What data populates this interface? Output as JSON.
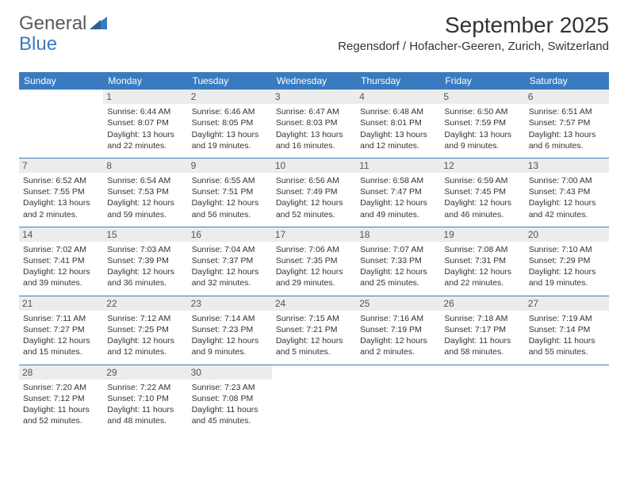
{
  "logo": {
    "general": "General",
    "blue": "Blue"
  },
  "title": "September 2025",
  "location": "Regensdorf / Hofacher-Geeren, Zurich, Switzerland",
  "colors": {
    "header_bg": "#3a7bbf",
    "header_text": "#ffffff",
    "daynum_bg": "#ececec",
    "daynum_text": "#555555",
    "cell_text": "#333333",
    "row_border": "#3a7bbf",
    "page_bg": "#ffffff"
  },
  "typography": {
    "title_fontsize": 28,
    "location_fontsize": 15,
    "header_fontsize": 12,
    "daynum_fontsize": 12,
    "cell_fontsize": 10.5
  },
  "day_headers": [
    "Sunday",
    "Monday",
    "Tuesday",
    "Wednesday",
    "Thursday",
    "Friday",
    "Saturday"
  ],
  "weeks": [
    [
      {
        "empty": true
      },
      {
        "num": "1",
        "sunrise": "Sunrise: 6:44 AM",
        "sunset": "Sunset: 8:07 PM",
        "day1": "Daylight: 13 hours",
        "day2": "and 22 minutes."
      },
      {
        "num": "2",
        "sunrise": "Sunrise: 6:46 AM",
        "sunset": "Sunset: 8:05 PM",
        "day1": "Daylight: 13 hours",
        "day2": "and 19 minutes."
      },
      {
        "num": "3",
        "sunrise": "Sunrise: 6:47 AM",
        "sunset": "Sunset: 8:03 PM",
        "day1": "Daylight: 13 hours",
        "day2": "and 16 minutes."
      },
      {
        "num": "4",
        "sunrise": "Sunrise: 6:48 AM",
        "sunset": "Sunset: 8:01 PM",
        "day1": "Daylight: 13 hours",
        "day2": "and 12 minutes."
      },
      {
        "num": "5",
        "sunrise": "Sunrise: 6:50 AM",
        "sunset": "Sunset: 7:59 PM",
        "day1": "Daylight: 13 hours",
        "day2": "and 9 minutes."
      },
      {
        "num": "6",
        "sunrise": "Sunrise: 6:51 AM",
        "sunset": "Sunset: 7:57 PM",
        "day1": "Daylight: 13 hours",
        "day2": "and 6 minutes."
      }
    ],
    [
      {
        "num": "7",
        "sunrise": "Sunrise: 6:52 AM",
        "sunset": "Sunset: 7:55 PM",
        "day1": "Daylight: 13 hours",
        "day2": "and 2 minutes."
      },
      {
        "num": "8",
        "sunrise": "Sunrise: 6:54 AM",
        "sunset": "Sunset: 7:53 PM",
        "day1": "Daylight: 12 hours",
        "day2": "and 59 minutes."
      },
      {
        "num": "9",
        "sunrise": "Sunrise: 6:55 AM",
        "sunset": "Sunset: 7:51 PM",
        "day1": "Daylight: 12 hours",
        "day2": "and 56 minutes."
      },
      {
        "num": "10",
        "sunrise": "Sunrise: 6:56 AM",
        "sunset": "Sunset: 7:49 PM",
        "day1": "Daylight: 12 hours",
        "day2": "and 52 minutes."
      },
      {
        "num": "11",
        "sunrise": "Sunrise: 6:58 AM",
        "sunset": "Sunset: 7:47 PM",
        "day1": "Daylight: 12 hours",
        "day2": "and 49 minutes."
      },
      {
        "num": "12",
        "sunrise": "Sunrise: 6:59 AM",
        "sunset": "Sunset: 7:45 PM",
        "day1": "Daylight: 12 hours",
        "day2": "and 46 minutes."
      },
      {
        "num": "13",
        "sunrise": "Sunrise: 7:00 AM",
        "sunset": "Sunset: 7:43 PM",
        "day1": "Daylight: 12 hours",
        "day2": "and 42 minutes."
      }
    ],
    [
      {
        "num": "14",
        "sunrise": "Sunrise: 7:02 AM",
        "sunset": "Sunset: 7:41 PM",
        "day1": "Daylight: 12 hours",
        "day2": "and 39 minutes."
      },
      {
        "num": "15",
        "sunrise": "Sunrise: 7:03 AM",
        "sunset": "Sunset: 7:39 PM",
        "day1": "Daylight: 12 hours",
        "day2": "and 36 minutes."
      },
      {
        "num": "16",
        "sunrise": "Sunrise: 7:04 AM",
        "sunset": "Sunset: 7:37 PM",
        "day1": "Daylight: 12 hours",
        "day2": "and 32 minutes."
      },
      {
        "num": "17",
        "sunrise": "Sunrise: 7:06 AM",
        "sunset": "Sunset: 7:35 PM",
        "day1": "Daylight: 12 hours",
        "day2": "and 29 minutes."
      },
      {
        "num": "18",
        "sunrise": "Sunrise: 7:07 AM",
        "sunset": "Sunset: 7:33 PM",
        "day1": "Daylight: 12 hours",
        "day2": "and 25 minutes."
      },
      {
        "num": "19",
        "sunrise": "Sunrise: 7:08 AM",
        "sunset": "Sunset: 7:31 PM",
        "day1": "Daylight: 12 hours",
        "day2": "and 22 minutes."
      },
      {
        "num": "20",
        "sunrise": "Sunrise: 7:10 AM",
        "sunset": "Sunset: 7:29 PM",
        "day1": "Daylight: 12 hours",
        "day2": "and 19 minutes."
      }
    ],
    [
      {
        "num": "21",
        "sunrise": "Sunrise: 7:11 AM",
        "sunset": "Sunset: 7:27 PM",
        "day1": "Daylight: 12 hours",
        "day2": "and 15 minutes."
      },
      {
        "num": "22",
        "sunrise": "Sunrise: 7:12 AM",
        "sunset": "Sunset: 7:25 PM",
        "day1": "Daylight: 12 hours",
        "day2": "and 12 minutes."
      },
      {
        "num": "23",
        "sunrise": "Sunrise: 7:14 AM",
        "sunset": "Sunset: 7:23 PM",
        "day1": "Daylight: 12 hours",
        "day2": "and 9 minutes."
      },
      {
        "num": "24",
        "sunrise": "Sunrise: 7:15 AM",
        "sunset": "Sunset: 7:21 PM",
        "day1": "Daylight: 12 hours",
        "day2": "and 5 minutes."
      },
      {
        "num": "25",
        "sunrise": "Sunrise: 7:16 AM",
        "sunset": "Sunset: 7:19 PM",
        "day1": "Daylight: 12 hours",
        "day2": "and 2 minutes."
      },
      {
        "num": "26",
        "sunrise": "Sunrise: 7:18 AM",
        "sunset": "Sunset: 7:17 PM",
        "day1": "Daylight: 11 hours",
        "day2": "and 58 minutes."
      },
      {
        "num": "27",
        "sunrise": "Sunrise: 7:19 AM",
        "sunset": "Sunset: 7:14 PM",
        "day1": "Daylight: 11 hours",
        "day2": "and 55 minutes."
      }
    ],
    [
      {
        "num": "28",
        "sunrise": "Sunrise: 7:20 AM",
        "sunset": "Sunset: 7:12 PM",
        "day1": "Daylight: 11 hours",
        "day2": "and 52 minutes."
      },
      {
        "num": "29",
        "sunrise": "Sunrise: 7:22 AM",
        "sunset": "Sunset: 7:10 PM",
        "day1": "Daylight: 11 hours",
        "day2": "and 48 minutes."
      },
      {
        "num": "30",
        "sunrise": "Sunrise: 7:23 AM",
        "sunset": "Sunset: 7:08 PM",
        "day1": "Daylight: 11 hours",
        "day2": "and 45 minutes."
      },
      {
        "empty": true
      },
      {
        "empty": true
      },
      {
        "empty": true
      },
      {
        "empty": true
      }
    ]
  ]
}
